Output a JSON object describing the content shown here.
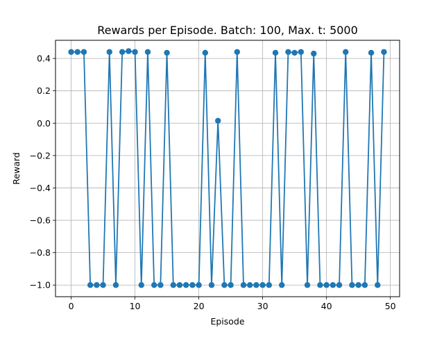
{
  "chart_data": {
    "type": "line",
    "title": "Rewards per Episode. Batch: 100, Max. t: 5000",
    "xlabel": "Episode",
    "ylabel": "Reward",
    "xlim": [
      -2.45,
      51.45
    ],
    "ylim": [
      -1.072,
      0.512
    ],
    "xticks": [
      0,
      10,
      20,
      30,
      40,
      50
    ],
    "yticks": [
      -1.0,
      -0.8,
      -0.6,
      -0.4,
      -0.2,
      0.0,
      0.2,
      0.4
    ],
    "xtick_labels": [
      "0",
      "10",
      "20",
      "30",
      "40",
      "50"
    ],
    "ytick_labels": [
      "−1.0",
      "−0.8",
      "−0.6",
      "−0.4",
      "−0.2",
      "0.0",
      "0.2",
      "0.4"
    ],
    "grid": true,
    "markers": true,
    "series": [
      {
        "color": "#1f77b4",
        "x": [
          0,
          1,
          2,
          3,
          4,
          5,
          6,
          7,
          8,
          9,
          10,
          11,
          12,
          13,
          14,
          15,
          16,
          17,
          18,
          19,
          20,
          21,
          22,
          23,
          24,
          25,
          26,
          27,
          28,
          29,
          30,
          31,
          32,
          33,
          34,
          35,
          36,
          37,
          38,
          39,
          40,
          41,
          42,
          43,
          44,
          45,
          46,
          47,
          48,
          49
        ],
        "y": [
          0.44,
          0.44,
          0.44,
          -1.0,
          -1.0,
          -1.0,
          0.44,
          -1.0,
          0.44,
          0.445,
          0.44,
          -1.0,
          0.44,
          -1.0,
          -1.0,
          0.435,
          -1.0,
          -1.0,
          -1.0,
          -1.0,
          -1.0,
          0.435,
          -1.0,
          0.015,
          -1.0,
          -1.0,
          0.44,
          -1.0,
          -1.0,
          -1.0,
          -1.0,
          -1.0,
          0.435,
          -1.0,
          0.44,
          0.435,
          0.44,
          -1.0,
          0.43,
          -1.0,
          -1.0,
          -1.0,
          -1.0,
          0.44,
          -1.0,
          -1.0,
          -1.0,
          0.435,
          -1.0,
          0.44
        ]
      }
    ]
  }
}
